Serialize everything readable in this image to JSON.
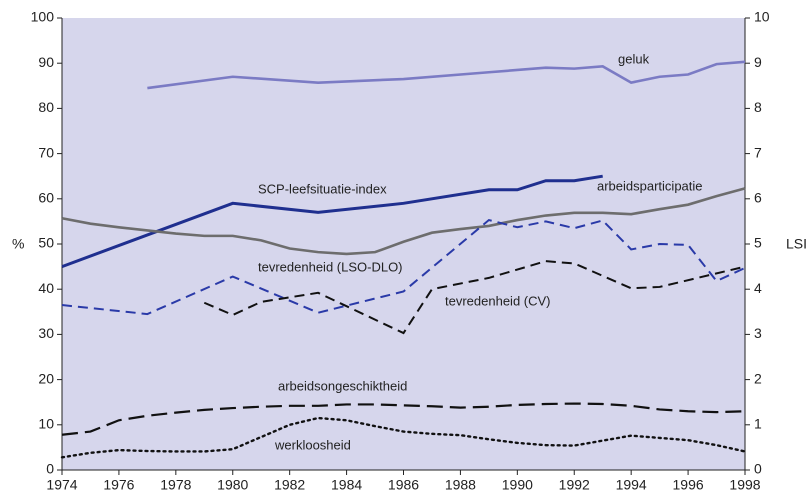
{
  "chart_data": {
    "type": "line",
    "y_label": "%",
    "y2_label": "LSI",
    "xlim": [
      1974,
      1998
    ],
    "xticks": [
      1974,
      1976,
      1978,
      1980,
      1982,
      1984,
      1986,
      1988,
      1990,
      1992,
      1994,
      1996,
      1998
    ],
    "ylim": [
      0,
      100
    ],
    "yticks": [
      0,
      10,
      20,
      30,
      40,
      50,
      60,
      70,
      80,
      90,
      100
    ],
    "y2lim": [
      0,
      10
    ],
    "y2ticks": [
      0,
      1,
      2,
      3,
      4,
      5,
      6,
      7,
      8,
      9,
      10
    ],
    "background": "#d6d6ec",
    "series": [
      {
        "name": "geluk",
        "color": "#7b7bc4",
        "line_style": "solid",
        "x": [
          1977,
          1980,
          1983,
          1986,
          1989,
          1991,
          1992,
          1993,
          1994,
          1995,
          1996,
          1997,
          1998
        ],
        "values": [
          84.5,
          87,
          85.7,
          86.5,
          88,
          89,
          88.8,
          89.3,
          85.7,
          87,
          87.5,
          89.8,
          90.3
        ]
      },
      {
        "name": "SCP-leefsituatie-index",
        "color": "#1f2f8f",
        "line_style": "solid",
        "axis": "y2",
        "x": [
          1974,
          1980,
          1983,
          1986,
          1989,
          1990,
          1991,
          1992,
          1993
        ],
        "values": [
          4.5,
          5.9,
          5.7,
          5.9,
          6.2,
          6.2,
          6.4,
          6.4,
          6.5
        ]
      },
      {
        "name": "arbeidsparticipatie",
        "color": "#6d6d6d",
        "line_style": "solid",
        "x": [
          1974,
          1975,
          1976,
          1977,
          1978,
          1979,
          1980,
          1981,
          1982,
          1983,
          1984,
          1985,
          1986,
          1987,
          1988,
          1989,
          1990,
          1991,
          1992,
          1993,
          1994,
          1995,
          1996,
          1997,
          1998
        ],
        "values": [
          55.7,
          54.5,
          53.7,
          53,
          52.3,
          51.8,
          51.8,
          50.8,
          49,
          48.2,
          47.8,
          48.2,
          50.5,
          52.5,
          53.3,
          54,
          55.3,
          56.3,
          56.9,
          56.9,
          56.6,
          57.7,
          58.7,
          60.6,
          62.3
        ]
      },
      {
        "name": "tevredenheid (LSO-DLO)",
        "color": "#2a3aa8",
        "line_style": "dashed",
        "x": [
          1974,
          1977,
          1980,
          1983,
          1986,
          1989,
          1990,
          1991,
          1992,
          1993,
          1994,
          1995,
          1996,
          1997,
          1998
        ],
        "values": [
          36.5,
          34.5,
          42.8,
          34.8,
          39.5,
          55.3,
          53.7,
          55,
          53.5,
          55.2,
          48.8,
          50,
          49.8,
          41.8,
          44.7
        ]
      },
      {
        "name": "tevredenheid (CV)",
        "color": "#111111",
        "line_style": "dashed",
        "x": [
          1979,
          1980,
          1981,
          1983,
          1986,
          1987,
          1989,
          1991,
          1992,
          1994,
          1995,
          1998
        ],
        "values": [
          37,
          34.3,
          37.2,
          39.2,
          30.3,
          40,
          42.5,
          46.2,
          45.7,
          40.2,
          40.5,
          45
        ]
      },
      {
        "name": "arbeidsongeschiktheid",
        "color": "#111111",
        "line_style": "longdash",
        "x": [
          1974,
          1975,
          1976,
          1977,
          1978,
          1979,
          1980,
          1981,
          1982,
          1983,
          1984,
          1985,
          1986,
          1987,
          1988,
          1989,
          1990,
          1991,
          1992,
          1993,
          1994,
          1995,
          1996,
          1997,
          1998
        ],
        "values": [
          7.8,
          8.5,
          11,
          12,
          12.7,
          13.3,
          13.7,
          14,
          14.2,
          14.2,
          14.5,
          14.5,
          14.3,
          14.1,
          13.8,
          14,
          14.4,
          14.6,
          14.7,
          14.6,
          14.2,
          13.4,
          13,
          12.8,
          13
        ]
      },
      {
        "name": "werkloosheid",
        "color": "#111111",
        "line_style": "dotted",
        "x": [
          1974,
          1975,
          1976,
          1977,
          1978,
          1979,
          1980,
          1981,
          1982,
          1983,
          1984,
          1985,
          1986,
          1987,
          1988,
          1989,
          1990,
          1991,
          1992,
          1993,
          1994,
          1995,
          1996,
          1997,
          1998
        ],
        "values": [
          2.8,
          3.8,
          4.4,
          4.2,
          4.1,
          4.1,
          4.6,
          7.3,
          10,
          11.5,
          11,
          9.7,
          8.5,
          8,
          7.7,
          6.8,
          6,
          5.5,
          5.4,
          6.5,
          7.6,
          7.1,
          6.6,
          5.5,
          4.1
        ]
      }
    ]
  }
}
